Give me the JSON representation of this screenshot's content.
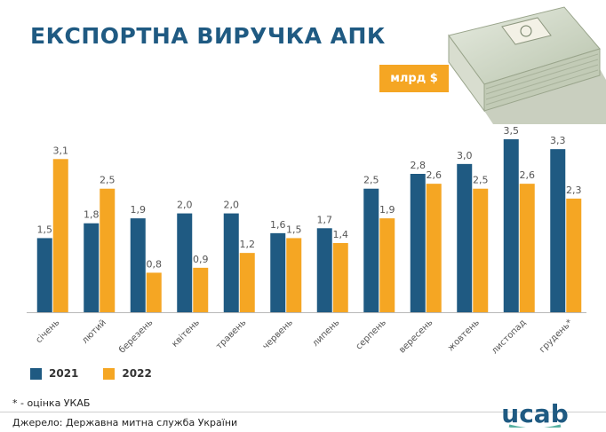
{
  "title": "ЕКСПОРТНА ВИРУЧКА АПК",
  "unit": "млрд $",
  "footnote": "* - оцінка УКАБ",
  "source": "Джерело: Державна митна служба України",
  "logo": {
    "text": "ucab",
    "color": "#1f5a82",
    "accent": "#57b0a0"
  },
  "colors": {
    "title": "#1f5a82",
    "series_2021": "#1f5a82",
    "series_2022": "#f5a623"
  },
  "chart_data": {
    "type": "bar",
    "categories": [
      "січень",
      "лютий",
      "березень",
      "квітень",
      "травень",
      "червень",
      "липень",
      "серпень",
      "вересень",
      "жовтень",
      "листопад",
      "грудень*"
    ],
    "series": [
      {
        "name": "2021",
        "color": "#1f5a82",
        "values": [
          1.5,
          1.8,
          1.9,
          2.0,
          2.0,
          1.6,
          1.7,
          2.5,
          2.8,
          3.0,
          3.5,
          3.3
        ]
      },
      {
        "name": "2022",
        "color": "#f5a623",
        "values": [
          3.1,
          2.5,
          0.8,
          0.9,
          1.2,
          1.5,
          1.4,
          1.9,
          2.6,
          2.5,
          2.6,
          2.3
        ]
      }
    ],
    "ylim": [
      0,
      3.5
    ],
    "grid": false,
    "legend": "bottom-left",
    "data_labels": true,
    "decimal_separator": ","
  }
}
